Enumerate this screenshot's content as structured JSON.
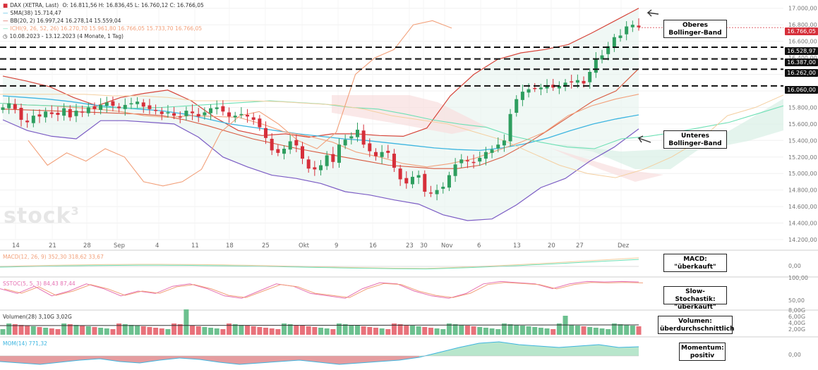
{
  "header": {
    "line1_name": "DAX (XETRA, Last)",
    "line1_ohlc": "O: 16.811,56  H: 16.836,45  L: 16.760,12  C: 16.766,05",
    "sma": "SMA(38)  15.714,47",
    "bb": "BB(20, 2)  16.997,24  16.278,14  15.559,04",
    "ichi": "ICHI(9, 26, 52, 26)  16.270,70  15.961,80  16.766,05  15.733,70  16.766,05",
    "range": "10.08.2023 - 13.12.2023  (4 Monate, 1 Tag)"
  },
  "logo": "stock",
  "logo_sup": "3",
  "annotations": {
    "upper_band": [
      "Oberes",
      "Bollinger-Band"
    ],
    "lower_band": [
      "Unteres",
      "Bollinger-Band"
    ],
    "macd": [
      "MACD:",
      "\"überkauft\""
    ],
    "stoch": [
      "Slow-Stochastik:",
      "\"überkauft\""
    ],
    "volume": [
      "Volumen:",
      "überdurchschnittlich"
    ],
    "momentum": [
      "Momentum:",
      "positiv"
    ]
  },
  "price_tags": {
    "last": "16.766,05",
    "levels": [
      "16.528,97",
      "16.387,00",
      "16.262,00",
      "16.060,00"
    ]
  },
  "y_axis_ticks": [
    "17.000,00",
    "16.800,00",
    "16.600,00",
    "16.400,00",
    "16.200,00",
    "16.000,00",
    "15.800,00",
    "15.600,00",
    "15.400,00",
    "15.200,00",
    "15.000,00",
    "14.800,00",
    "14.600,00",
    "14.400,00",
    "14.200,00"
  ],
  "x_axis_ticks": [
    "14",
    "21",
    "28",
    "Sep",
    "4",
    "11",
    "18",
    "25",
    "Okt",
    "9",
    "16",
    "23",
    "30",
    "Nov",
    "6",
    "13",
    "20",
    "27",
    "Dez",
    "11"
  ],
  "sub_panels": {
    "macd_label": "MACD(12, 26, 9)  352,30  318,62  33,67",
    "macd_ticks": [
      "0,00"
    ],
    "stoch_label": "SSTOC(5, 5, 3)  84,43  87,44",
    "stoch_ticks": [
      "100,00",
      "50,00"
    ],
    "vol_label": "Volumen(28)  3,10G  3,02G",
    "vol_ticks": [
      "8,00G",
      "6,00G",
      "4,00G",
      "2,00G"
    ],
    "mom_label": "MOM(14)  771,32",
    "mom_ticks": [
      "0,00"
    ]
  },
  "colors": {
    "up": "#2e9e5f",
    "down": "#d62f3a",
    "sma": "#3db5e0",
    "bb": "#d6453a",
    "bb_lower": "#7b5cc4",
    "ichi_fill_up": "#d8f0e6",
    "ichi_fill_down": "#f8dede",
    "tenkan": "#f2a07a",
    "kijun": "#d85a40",
    "senkou_a": "#6ee0b5",
    "senkou_b": "#f4cfa0",
    "chikou": "#f2a07a"
  },
  "chart_data": {
    "type": "candlestick",
    "title": "DAX (XETRA, Last)",
    "ylim": [
      14200,
      17100
    ],
    "y_scale": "linear",
    "grid": true,
    "horizontal_levels": [
      16528.97,
      16387.0,
      16262.0,
      16060.0
    ],
    "last_close": 16766.05,
    "candles_close": [
      15800,
      15850,
      15780,
      15650,
      15620,
      15700,
      15690,
      15750,
      15720,
      15710,
      15790,
      15680,
      15760,
      15740,
      15800,
      15780,
      15830,
      15860,
      15820,
      15790,
      15830,
      15850,
      15870,
      15810,
      15780,
      15760,
      15720,
      15740,
      15700,
      15680,
      15760,
      15730,
      15690,
      15740,
      15790,
      15800,
      15750,
      15690,
      15700,
      15720,
      15690,
      15650,
      15560,
      15430,
      15280,
      15250,
      15300,
      15390,
      15340,
      15180,
      15060,
      15050,
      15100,
      15220,
      15140,
      15350,
      15410,
      15450,
      15530,
      15350,
      15270,
      15210,
      15260,
      15250,
      15070,
      14930,
      14880,
      14960,
      14980,
      14780,
      14760,
      14800,
      14840,
      14980,
      15110,
      15170,
      15150,
      15130,
      15190,
      15260,
      15290,
      15350,
      15400,
      15720,
      15900,
      15990,
      16020,
      16030,
      16040,
      16060,
      16040,
      16060,
      16100,
      16110,
      16130,
      16090,
      16230,
      16390,
      16430,
      16540,
      16650,
      16670,
      16780,
      16800,
      16770
    ],
    "sma38_series": [
      15940,
      15920,
      15900,
      15870,
      15830,
      15800,
      15780,
      15760,
      15720,
      15660,
      15600,
      15560,
      15520,
      15480,
      15450,
      15420,
      15400,
      15370,
      15340,
      15310,
      15290,
      15280,
      15310,
      15360,
      15430,
      15520,
      15600,
      15660,
      15710
    ],
    "bb_upper_series": [
      16180,
      16120,
      16050,
      15920,
      15820,
      15920,
      15970,
      16010,
      15880,
      15680,
      15520,
      15460,
      15480,
      15440,
      15480,
      15480,
      15460,
      15450,
      15550,
      15940,
      16200,
      16380,
      16460,
      16500,
      16560,
      16700,
      16850,
      17000
    ],
    "bb_lower_series": [
      15650,
      15520,
      15450,
      15420,
      15640,
      15640,
      15620,
      15600,
      15440,
      15200,
      15080,
      14980,
      14940,
      14880,
      14780,
      14740,
      14680,
      14630,
      14500,
      14430,
      14450,
      14620,
      14830,
      14940,
      15150,
      15320,
      15540
    ],
    "macd": {
      "macd": 352.3,
      "signal": 318.62,
      "histogram": 33.67
    },
    "slow_stochastic": {
      "k": 84.43,
      "d": 87.44
    },
    "volume": {
      "current": "3,10G",
      "average": "3,02G"
    },
    "momentum": {
      "period": 14,
      "value": 771.32
    }
  }
}
